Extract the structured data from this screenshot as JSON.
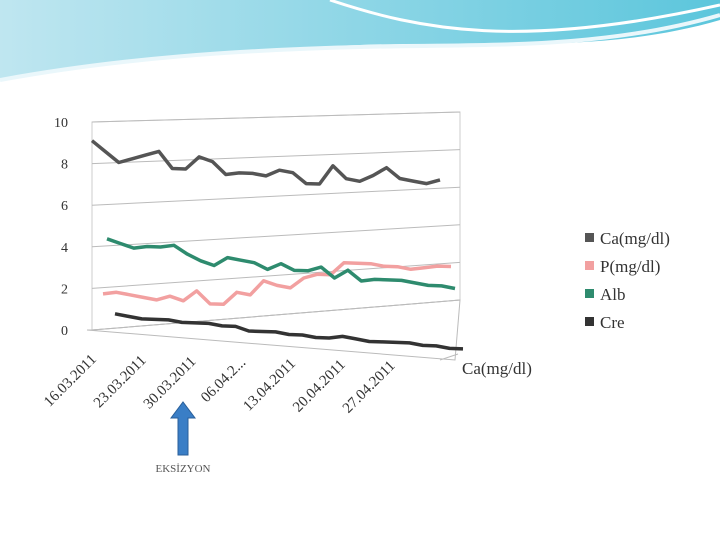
{
  "chart_data": {
    "type": "line",
    "categories": [
      "16.03.2011",
      null,
      null,
      null,
      "23.03.2011",
      null,
      null,
      null,
      "30.03.2011",
      null,
      null,
      null,
      "06.04.2...",
      null,
      null,
      null,
      "13.04.2011",
      null,
      null,
      null,
      "20.04.2011",
      null,
      null,
      null,
      "27.04.2011",
      null,
      null
    ],
    "series": [
      {
        "name": "Ca(mg/dl)",
        "color": "#555555",
        "values": [
          9.1,
          8.6,
          8.1,
          8.3,
          8.5,
          8.7,
          7.9,
          7.9,
          8.5,
          8.3,
          7.7,
          7.8,
          7.8,
          7.7,
          8.0,
          7.9,
          7.4,
          7.4,
          8.3,
          7.7,
          7.6,
          7.9,
          8.3,
          7.8,
          7.7,
          7.6,
          7.8
        ]
      },
      {
        "name": "P(mg/dl)",
        "color": "#f2a0a0",
        "values": [
          1.9,
          2.0,
          1.9,
          1.8,
          1.7,
          1.9,
          1.7,
          2.2,
          1.6,
          1.6,
          2.2,
          2.1,
          2.8,
          2.6,
          2.5,
          3.0,
          3.2,
          3.2,
          3.8,
          3.8,
          3.8,
          3.7,
          3.7,
          3.6,
          3.7,
          3.8,
          3.8
        ]
      },
      {
        "name": "Alb",
        "color": "#2e8b6e",
        "values": [
          4.6,
          4.4,
          4.2,
          4.3,
          4.3,
          4.4,
          4.0,
          3.7,
          3.5,
          3.9,
          3.8,
          3.7,
          3.4,
          3.7,
          3.4,
          3.4,
          3.6,
          3.1,
          3.5,
          3.0,
          3.1,
          3.1,
          3.1,
          3.0,
          2.9,
          2.9,
          2.8
        ]
      },
      {
        "name": "Cre",
        "color": "#333333",
        "values": [
          1.2,
          1.1,
          1.0,
          1.0,
          1.0,
          0.9,
          0.9,
          0.9,
          0.8,
          0.8,
          0.6,
          0.6,
          0.6,
          0.5,
          0.5,
          0.4,
          0.4,
          0.5,
          0.4,
          0.3,
          0.3,
          0.3,
          0.3,
          0.2,
          0.2,
          0.1,
          0.1
        ]
      }
    ],
    "depth_label": "Ca(mg/dl)",
    "annotation": "EKSİZYON",
    "ylim": [
      0,
      10
    ],
    "yticks": [
      0,
      2,
      4,
      6,
      8,
      10
    ],
    "grid": true
  }
}
